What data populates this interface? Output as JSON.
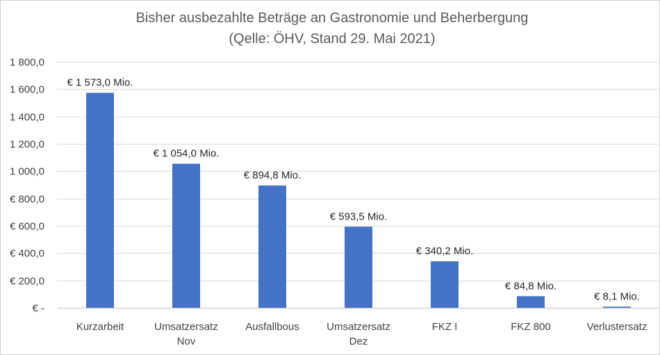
{
  "chart_data": {
    "type": "bar",
    "title": "Bisher ausbezahlte Beträge an Gastronomie und Beherbergung",
    "subtitle": "(Qelle: ÖHV, Stand 29. Mai 2021)",
    "xlabel": "",
    "ylabel": "",
    "ylim": [
      0,
      1800
    ],
    "grid": true,
    "legend": "none",
    "bar_color": "#4472c4",
    "y_ticks": [
      {
        "value": 1800,
        "label": "1 800,0"
      },
      {
        "value": 1600,
        "label": "1 600,0"
      },
      {
        "value": 1400,
        "label": "1 400,0"
      },
      {
        "value": 1200,
        "label": "1 200,0"
      },
      {
        "value": 1000,
        "label": "1 000,0"
      },
      {
        "value": 800,
        "label": "€ 800,0"
      },
      {
        "value": 600,
        "label": "€ 600,0"
      },
      {
        "value": 400,
        "label": "€ 400,0"
      },
      {
        "value": 200,
        "label": "€ 200,0"
      },
      {
        "value": 0,
        "label": "€ -"
      }
    ],
    "categories": [
      [
        "Kurzarbeit"
      ],
      [
        "Umsatzersatz",
        "Nov"
      ],
      [
        "Ausfallbous"
      ],
      [
        "Umsatzersatz",
        "Dez"
      ],
      [
        "FKZ I"
      ],
      [
        "FKZ 800"
      ],
      [
        "Verlustersatz"
      ]
    ],
    "values": [
      1573.0,
      1054.0,
      894.8,
      593.5,
      340.2,
      84.8,
      8.1
    ],
    "data_labels": [
      "€ 1 573,0 Mio.",
      "€ 1 054,0 Mio.",
      "€  894,8 Mio.",
      "€  593,5 Mio.",
      "€  340,2 Mio.",
      "€  84,8 Mio.",
      "€  8,1 Mio."
    ]
  }
}
